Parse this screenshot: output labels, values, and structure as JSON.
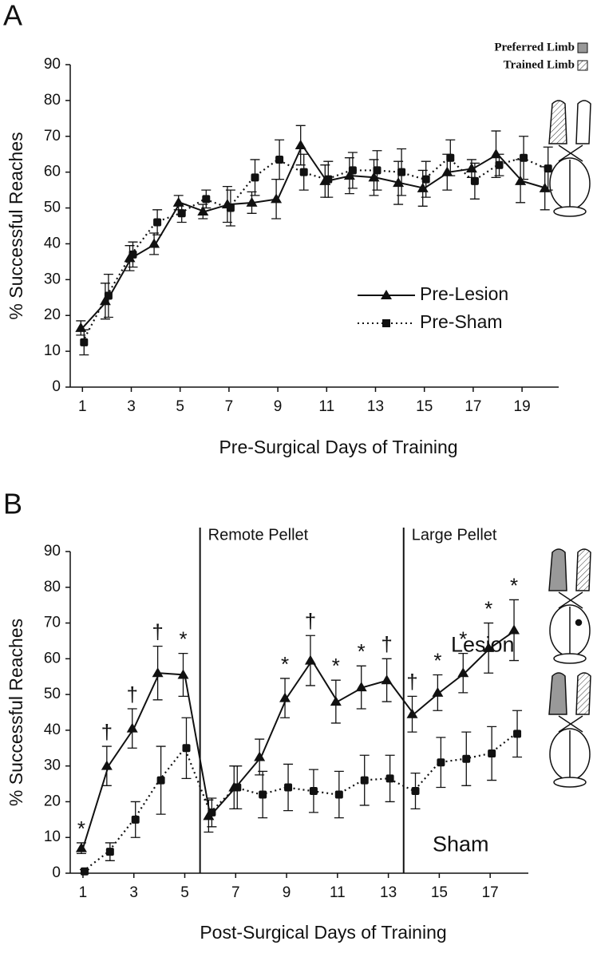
{
  "chart_data": [
    {
      "type": "line",
      "panel": "A",
      "x_label": "Pre-Surgical Days of Training",
      "y_label": "% Successful Reaches",
      "x": [
        1,
        2,
        3,
        4,
        5,
        6,
        7,
        8,
        9,
        10,
        11,
        12,
        13,
        14,
        15,
        16,
        17,
        18,
        19,
        20
      ],
      "xlim": [
        0.5,
        20.5
      ],
      "xticks": [
        1,
        3,
        5,
        7,
        9,
        11,
        13,
        15,
        17,
        19
      ],
      "ylim": [
        0,
        90
      ],
      "yticks": [
        0,
        10,
        20,
        30,
        40,
        50,
        60,
        70,
        80,
        90
      ],
      "series": [
        {
          "name": "Pre-Lesion",
          "color": "#111111",
          "marker": "triangle",
          "dash": "solid",
          "values": [
            16.5,
            24,
            36,
            40,
            51.5,
            49,
            51,
            51.5,
            52.5,
            67.5,
            57.5,
            59,
            58.5,
            57,
            55.5,
            60,
            61,
            65,
            57.5,
            55.5
          ],
          "errors": [
            2,
            5,
            3.5,
            3,
            2,
            2,
            5,
            3,
            5.5,
            5.5,
            4.5,
            5,
            5,
            6,
            5,
            5,
            2.5,
            6.5,
            6,
            6
          ]
        },
        {
          "name": "Pre-Sham",
          "color": "#111111",
          "marker": "square",
          "dash": "dotted",
          "values": [
            12.5,
            25.5,
            37,
            46,
            48.5,
            52.5,
            50,
            58.5,
            63.5,
            60,
            58,
            60.5,
            60.5,
            60,
            58,
            64,
            57.5,
            62,
            64,
            61
          ],
          "errors": [
            3.5,
            6,
            3.5,
            3.5,
            2.5,
            2.5,
            5,
            5,
            5.5,
            5,
            5,
            5,
            5.5,
            6.5,
            5,
            5,
            5,
            3,
            6,
            6
          ]
        }
      ],
      "limb_legend": [
        {
          "label": "Preferred Limb",
          "color": "#999999"
        },
        {
          "label": "Trained Limb",
          "color": "hatch"
        }
      ]
    },
    {
      "type": "line",
      "panel": "B",
      "x_label": "Post-Surgical Days of Training",
      "y_label": "% Successful Reaches",
      "x": [
        1,
        2,
        3,
        4,
        5,
        6,
        7,
        8,
        9,
        10,
        11,
        12,
        13,
        14,
        15,
        16,
        17,
        18
      ],
      "xlim": [
        0.5,
        18.5
      ],
      "xticks": [
        1,
        3,
        5,
        7,
        9,
        11,
        13,
        15,
        17
      ],
      "ylim": [
        0,
        90
      ],
      "yticks": [
        0,
        10,
        20,
        30,
        40,
        50,
        60,
        70,
        80,
        90
      ],
      "phase_lines": [
        5.6,
        13.6
      ],
      "phase_labels": [
        "Remote Pellet",
        "Large Pellet"
      ],
      "group_labels": [
        "Lesion",
        "Sham"
      ],
      "series": [
        {
          "name": "Lesion",
          "color": "#111111",
          "marker": "triangle",
          "dash": "solid",
          "values": [
            7,
            30,
            40.5,
            56,
            55.5,
            16,
            24,
            32.5,
            49,
            59.5,
            48,
            52,
            54,
            44.5,
            50.5,
            56,
            63,
            68
          ],
          "errors": [
            1.5,
            5.5,
            5.5,
            7.5,
            6,
            4.5,
            6,
            5,
            5.5,
            7,
            6,
            6,
            6,
            5,
            5,
            5.5,
            7,
            8.5
          ],
          "annotations": [
            "*",
            "†",
            "†",
            "†",
            "*",
            null,
            null,
            null,
            "*",
            "†",
            "*",
            "*",
            "†",
            "†",
            "*",
            "*",
            "*",
            "*"
          ]
        },
        {
          "name": "Sham",
          "color": "#111111",
          "marker": "square",
          "dash": "dotted",
          "values": [
            0.5,
            6,
            15,
            26,
            35,
            17,
            24,
            22,
            24,
            23,
            22,
            26,
            26.5,
            23,
            31,
            32,
            33.5,
            39
          ],
          "errors": [
            0.5,
            2.5,
            5,
            9.5,
            8.5,
            4,
            6,
            6.5,
            6.5,
            6,
            6.5,
            7,
            6.5,
            5,
            7,
            7.5,
            7.5,
            6.5
          ]
        }
      ]
    }
  ]
}
